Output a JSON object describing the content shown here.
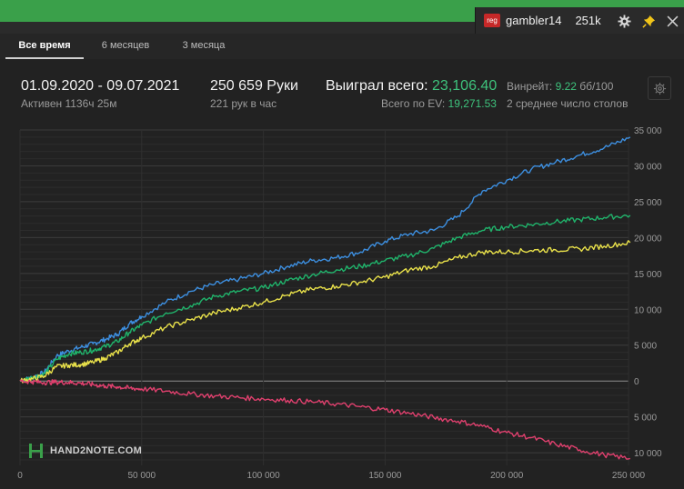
{
  "user": {
    "badge": "reg",
    "name": "gambler14",
    "hands_short": "251k"
  },
  "tabs": [
    {
      "label": "Все время",
      "active": true
    },
    {
      "label": "6 месяцев",
      "active": false
    },
    {
      "label": "3 месяца",
      "active": false
    }
  ],
  "stats": {
    "date_range": "01.09.2020 - 09.07.2021",
    "active_time": "Активен 1136ч 25м",
    "hands": "250 659 Руки",
    "hands_per_hour": "221 рук в час",
    "won_label": "Выиграл всего:",
    "won_value": "23,106.40",
    "ev_label": "Всего по EV:",
    "ev_value": "19,271.53",
    "winrate_label": "Винрейт:",
    "winrate_value": "9.22",
    "winrate_unit": "бб/100",
    "tables_avg": "2 среднее число столов"
  },
  "colors": {
    "accent_green": "#3ec27c",
    "line_blue": "#3d8fe0",
    "line_green": "#20b36b",
    "line_yellow": "#e8e04a",
    "line_red": "#e0406e"
  },
  "logo_text": "HAND2NOTE.COM",
  "chart_data": {
    "type": "line",
    "xlim": [
      0,
      250000
    ],
    "ylim": [
      -11000,
      35000
    ],
    "x_ticks": [
      0,
      50000,
      100000,
      150000,
      200000,
      250000
    ],
    "x_tick_labels": [
      "0",
      "50 000",
      "100 000",
      "150 000",
      "200 000",
      "250 000"
    ],
    "y_ticks": [
      35000,
      30000,
      25000,
      20000,
      15000,
      10000,
      5000,
      0,
      -5000,
      -10000
    ],
    "y_tick_labels": [
      "35 000",
      "30 000",
      "25 000",
      "20 000",
      "15 000",
      "10 000",
      "5 000",
      "0",
      "5 000",
      "10 000"
    ],
    "grid": true,
    "x": [
      0,
      5000,
      10000,
      15000,
      20000,
      25000,
      30000,
      35000,
      40000,
      45000,
      50000,
      60000,
      70000,
      80000,
      90000,
      100000,
      110000,
      120000,
      130000,
      140000,
      150000,
      160000,
      170000,
      180000,
      190000,
      200000,
      210000,
      220000,
      230000,
      240000,
      250659
    ],
    "series": [
      {
        "values": [
          0,
          500,
          1200,
          3500,
          4200,
          4700,
          5200,
          5800,
          6500,
          8000,
          9000,
          11000,
          12500,
          13500,
          14200,
          15000,
          16000,
          16800,
          17200,
          18000,
          19500,
          20500,
          21000,
          23000,
          26500,
          28000,
          29500,
          30500,
          31500,
          32500,
          34000
        ]
      },
      {
        "values": [
          0,
          500,
          1000,
          3000,
          3800,
          4000,
          4300,
          4800,
          5500,
          6800,
          7800,
          9500,
          10500,
          11800,
          12500,
          13000,
          14000,
          14800,
          15500,
          16000,
          16800,
          17500,
          18500,
          20000,
          21000,
          21500,
          21800,
          22200,
          22500,
          22800,
          23100
        ]
      },
      {
        "values": [
          0,
          300,
          700,
          2000,
          2200,
          2300,
          2600,
          3200,
          4000,
          5200,
          6000,
          7500,
          8500,
          9500,
          10200,
          11000,
          12000,
          12800,
          13200,
          13800,
          14500,
          15500,
          16000,
          17200,
          18000,
          18000,
          18200,
          18300,
          18400,
          18800,
          19300
        ]
      },
      {
        "values": [
          0,
          -100,
          -200,
          -150,
          -200,
          -300,
          -500,
          -700,
          -800,
          -1000,
          -1100,
          -1400,
          -1800,
          -2100,
          -2300,
          -2500,
          -2700,
          -2900,
          -3200,
          -3600,
          -4000,
          -4500,
          -5100,
          -5600,
          -6300,
          -7200,
          -7900,
          -8800,
          -9600,
          -10300,
          -10800
        ]
      }
    ]
  }
}
